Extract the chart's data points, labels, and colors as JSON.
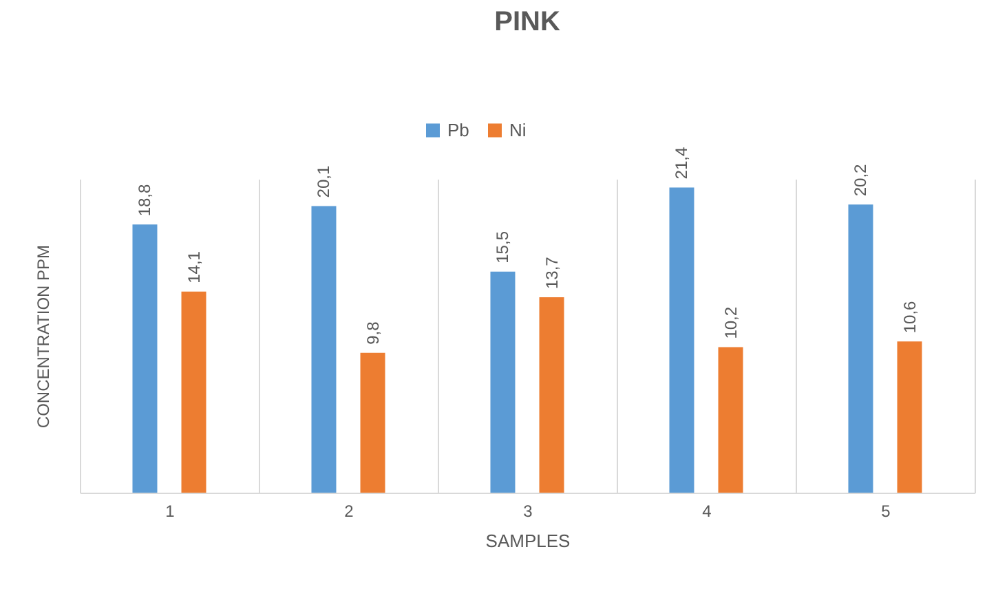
{
  "chart_data": {
    "type": "bar",
    "title": "PINK",
    "xlabel": "SAMPLES",
    "ylabel": "CONCENTRATION PPM",
    "categories": [
      "1",
      "2",
      "3",
      "4",
      "5"
    ],
    "series": [
      {
        "name": "Pb",
        "color": "#5b9bd5",
        "values": [
          18.8,
          20.1,
          15.5,
          21.4,
          20.2
        ],
        "value_labels": [
          "18,8",
          "20,1",
          "15,5",
          "21,4",
          "20,2"
        ]
      },
      {
        "name": "Ni",
        "color": "#ed7d31",
        "values": [
          14.1,
          9.8,
          13.7,
          10.2,
          10.6
        ],
        "value_labels": [
          "14,1",
          "9,8",
          "13,7",
          "10,2",
          "10,6"
        ]
      }
    ],
    "legend": "top",
    "grid": "x",
    "tick_labels": "x"
  }
}
